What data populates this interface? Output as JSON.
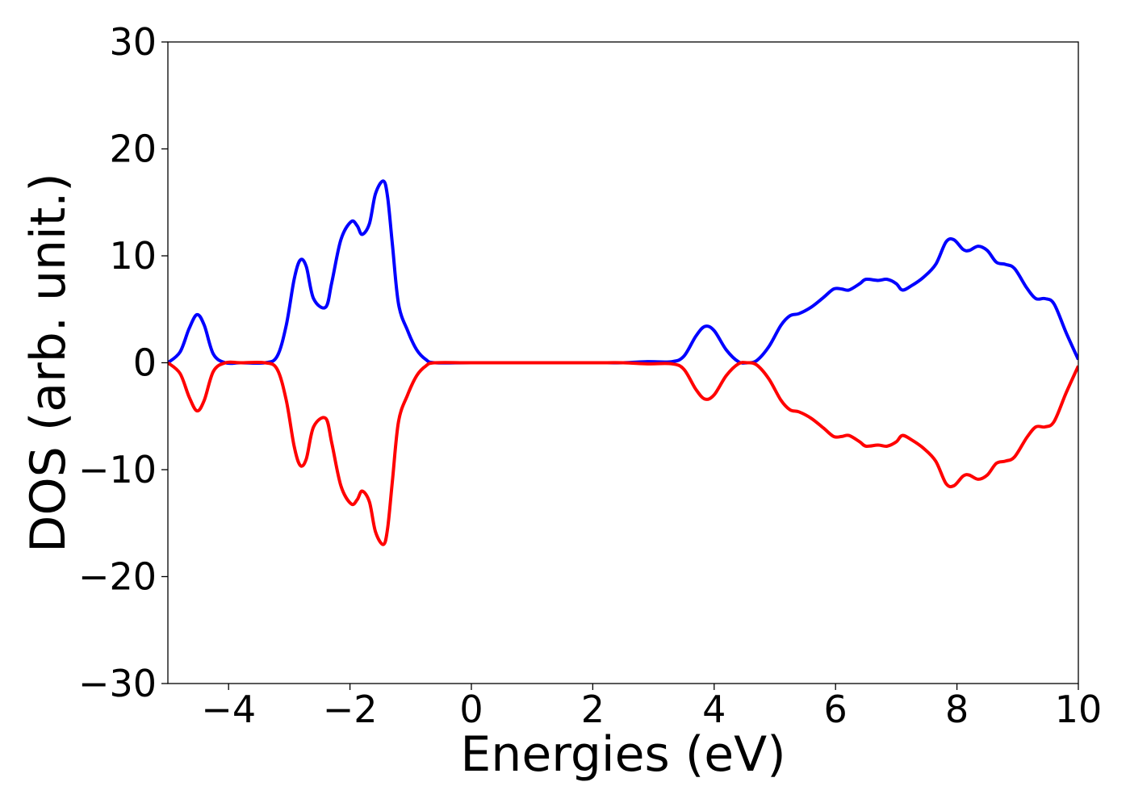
{
  "chart_data": {
    "type": "line",
    "title": "",
    "xlabel": "Energies (eV)",
    "ylabel": "DOS (arb. unit.)",
    "xlim": [
      -5,
      10
    ],
    "ylim": [
      -30,
      30
    ],
    "x_ticks": [
      -4,
      -2,
      0,
      2,
      4,
      6,
      8,
      10
    ],
    "x_tick_labels": [
      "−4",
      "−2",
      "0",
      "2",
      "4",
      "6",
      "8",
      "10"
    ],
    "y_ticks": [
      -30,
      -20,
      -10,
      0,
      10,
      20,
      30
    ],
    "y_tick_labels": [
      "−30",
      "−20",
      "−10",
      "0",
      "10",
      "20",
      "30"
    ],
    "grid": false,
    "legend": "none",
    "series": [
      {
        "color": "#0000ff",
        "x": [
          -5.0,
          -4.8,
          -4.65,
          -4.52,
          -4.4,
          -4.25,
          -4.05,
          -3.8,
          -3.4,
          -3.2,
          -3.05,
          -2.92,
          -2.82,
          -2.72,
          -2.6,
          -2.4,
          -2.3,
          -2.15,
          -1.98,
          -1.88,
          -1.8,
          -1.68,
          -1.58,
          -1.45,
          -1.38,
          -1.3,
          -1.2,
          -1.05,
          -0.9,
          -0.75,
          -0.6,
          0.0,
          1.0,
          2.0,
          2.5,
          2.9,
          3.3,
          3.5,
          3.7,
          3.85,
          4.0,
          4.2,
          4.4,
          4.55,
          4.7,
          4.9,
          5.1,
          5.25,
          5.4,
          5.6,
          5.8,
          5.97,
          6.1,
          6.22,
          6.4,
          6.5,
          6.7,
          6.85,
          7.0,
          7.1,
          7.25,
          7.45,
          7.65,
          7.82,
          7.95,
          8.1,
          8.2,
          8.35,
          8.5,
          8.65,
          8.8,
          8.95,
          9.15,
          9.3,
          9.45,
          9.6,
          9.8,
          10.0
        ],
        "y": [
          0.0,
          1.0,
          3.2,
          4.5,
          3.5,
          0.8,
          0.0,
          0.0,
          0.0,
          0.6,
          3.5,
          7.8,
          9.6,
          9.0,
          6.0,
          5.2,
          7.5,
          11.5,
          13.2,
          12.8,
          12.0,
          13.0,
          15.8,
          17.0,
          15.5,
          11.0,
          5.5,
          3.0,
          1.2,
          0.3,
          0.0,
          0.0,
          0.0,
          0.0,
          0.0,
          0.1,
          0.1,
          0.6,
          2.5,
          3.4,
          3.0,
          1.2,
          0.1,
          0.0,
          0.2,
          1.5,
          3.5,
          4.4,
          4.6,
          5.2,
          6.1,
          6.9,
          6.9,
          6.8,
          7.4,
          7.8,
          7.7,
          7.8,
          7.4,
          6.8,
          7.2,
          8.0,
          9.2,
          11.3,
          11.5,
          10.6,
          10.5,
          10.9,
          10.5,
          9.4,
          9.2,
          8.8,
          7.0,
          6.0,
          6.0,
          5.5,
          2.8,
          0.3
        ]
      },
      {
        "color": "#ff0000",
        "x": [
          -5.0,
          -4.8,
          -4.65,
          -4.52,
          -4.4,
          -4.25,
          -4.05,
          -3.8,
          -3.4,
          -3.2,
          -3.05,
          -2.92,
          -2.82,
          -2.72,
          -2.6,
          -2.4,
          -2.3,
          -2.15,
          -1.98,
          -1.88,
          -1.8,
          -1.68,
          -1.58,
          -1.45,
          -1.38,
          -1.3,
          -1.2,
          -1.05,
          -0.9,
          -0.75,
          -0.6,
          0.0,
          1.0,
          2.0,
          2.5,
          2.9,
          3.3,
          3.5,
          3.7,
          3.85,
          4.0,
          4.2,
          4.4,
          4.55,
          4.7,
          4.9,
          5.1,
          5.25,
          5.4,
          5.6,
          5.8,
          5.97,
          6.1,
          6.22,
          6.4,
          6.5,
          6.7,
          6.85,
          7.0,
          7.1,
          7.25,
          7.45,
          7.65,
          7.82,
          7.95,
          8.1,
          8.2,
          8.35,
          8.5,
          8.65,
          8.8,
          8.95,
          9.15,
          9.3,
          9.45,
          9.6,
          9.8,
          10.0
        ],
        "y": [
          0.0,
          -1.0,
          -3.2,
          -4.5,
          -3.5,
          -0.8,
          0.0,
          0.0,
          0.0,
          -0.6,
          -3.5,
          -7.8,
          -9.6,
          -9.0,
          -6.0,
          -5.2,
          -7.5,
          -11.5,
          -13.2,
          -12.8,
          -12.0,
          -13.0,
          -15.8,
          -17.0,
          -15.5,
          -11.0,
          -5.5,
          -3.0,
          -1.2,
          -0.3,
          0.0,
          0.0,
          0.0,
          0.0,
          0.0,
          -0.1,
          -0.1,
          -0.6,
          -2.5,
          -3.4,
          -3.0,
          -1.2,
          -0.1,
          0.0,
          -0.2,
          -1.5,
          -3.5,
          -4.4,
          -4.6,
          -5.2,
          -6.1,
          -6.9,
          -6.9,
          -6.8,
          -7.4,
          -7.8,
          -7.7,
          -7.8,
          -7.4,
          -6.8,
          -7.2,
          -8.0,
          -9.2,
          -11.3,
          -11.5,
          -10.6,
          -10.5,
          -10.9,
          -10.5,
          -9.4,
          -9.2,
          -8.8,
          -7.0,
          -6.0,
          -6.0,
          -5.5,
          -2.8,
          -0.3
        ]
      }
    ]
  }
}
